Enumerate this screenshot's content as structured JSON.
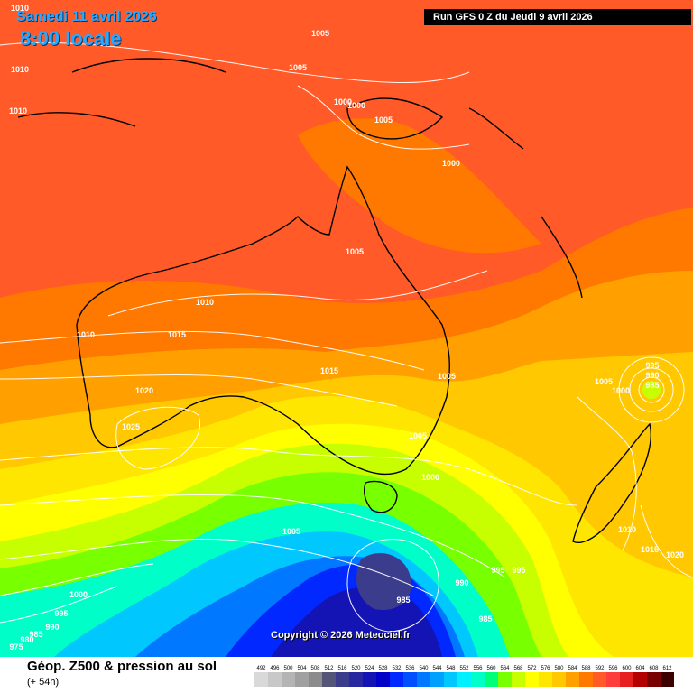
{
  "header": {
    "date": "Samedi 11 avril 2026",
    "time": "8:00 locale",
    "run": "Run GFS 0 Z du Jeudi 9 avril 2026"
  },
  "copyright": "Copyright © 2026 Meteociel.fr",
  "footer": {
    "title": "Géop. Z500 & pression au sol",
    "subtitle": "(+ 54h)"
  },
  "legend": {
    "values": [
      "492",
      "496",
      "500",
      "504",
      "508",
      "512",
      "516",
      "520",
      "524",
      "528",
      "532",
      "536",
      "540",
      "544",
      "548",
      "552",
      "556",
      "560",
      "564",
      "568",
      "572",
      "576",
      "580",
      "584",
      "588",
      "592",
      "596",
      "600",
      "604",
      "608",
      "612"
    ],
    "colors": [
      "#d9d9d9",
      "#c8c8c8",
      "#b4b4b4",
      "#a0a0a0",
      "#8c8c8c",
      "#555577",
      "#3c3c8c",
      "#2828a0",
      "#1414b4",
      "#0000c8",
      "#0028ff",
      "#0050ff",
      "#0078ff",
      "#00a0ff",
      "#00c8ff",
      "#00f0ff",
      "#00ffc8",
      "#00ff78",
      "#78ff00",
      "#c8ff00",
      "#ffff00",
      "#ffe600",
      "#ffc800",
      "#ffa000",
      "#ff7800",
      "#ff5a28",
      "#ff3c3c",
      "#e61e1e",
      "#b40000",
      "#780000",
      "#3c0000"
    ]
  },
  "isobars": [
    "1010",
    "1010",
    "1010",
    "1005",
    "1005",
    "1000",
    "1000",
    "1005",
    "1000",
    "1005",
    "1010",
    "1010",
    "1015",
    "1015",
    "1020",
    "1025",
    "1005",
    "1005",
    "995",
    "990",
    "985",
    "1005",
    "1000",
    "1000",
    "1005",
    "1010",
    "1015",
    "1020",
    "995",
    "995",
    "990",
    "985",
    "985",
    "1000",
    "995",
    "990",
    "985",
    "980",
    "975"
  ],
  "colors": {
    "accent": "#29a8ff",
    "banner": "#000000"
  }
}
